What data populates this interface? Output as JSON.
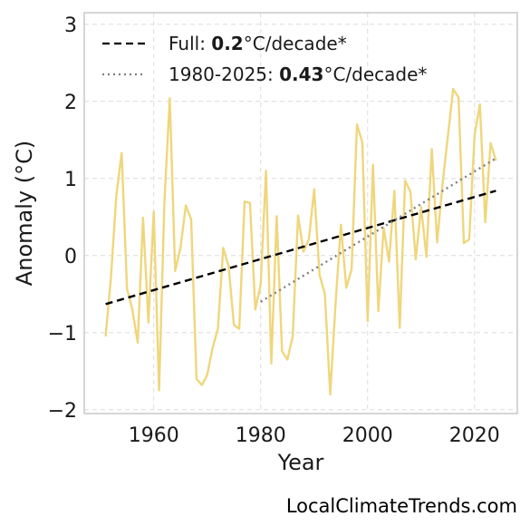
{
  "chart_data": {
    "type": "line",
    "xlabel": "Year",
    "ylabel": "Anomaly (°C)",
    "xlim": [
      1947,
      2028
    ],
    "ylim": [
      -2.05,
      3.15
    ],
    "xticks": [
      1960,
      1980,
      2000,
      2020
    ],
    "yticks": [
      -2,
      -1,
      0,
      1,
      2,
      3
    ],
    "ytick_labels": [
      "−2",
      "−1",
      "0",
      "1",
      "2",
      "3"
    ],
    "grid": true,
    "legend_position": "top-left",
    "series": [
      {
        "x": [
          1951,
          1952,
          1953,
          1954,
          1955,
          1956,
          1957,
          1958,
          1959,
          1960,
          1961,
          1962,
          1963,
          1964,
          1965,
          1966,
          1967,
          1968,
          1969,
          1970,
          1971,
          1972,
          1973,
          1974,
          1975,
          1976,
          1977,
          1978,
          1979,
          1980,
          1981,
          1982,
          1983,
          1984,
          1985,
          1986,
          1987,
          1988,
          1989,
          1990,
          1991,
          1992,
          1993,
          1994,
          1995,
          1996,
          1997,
          1998,
          1999,
          2000,
          2001,
          2002,
          2003,
          2004,
          2005,
          2006,
          2007,
          2008,
          2009,
          2010,
          2011,
          2012,
          2013,
          2014,
          2015,
          2016,
          2017,
          2018,
          2019,
          2020,
          2021,
          2022,
          2023,
          2024
        ],
        "values": [
          -1.05,
          -0.28,
          0.78,
          1.33,
          -0.43,
          -0.7,
          -1.13,
          0.49,
          -0.87,
          0.57,
          -1.75,
          0.7,
          2.04,
          -0.2,
          0.1,
          0.65,
          0.47,
          -1.6,
          -1.68,
          -1.55,
          -1.2,
          -0.95,
          0.1,
          -0.14,
          -0.9,
          -0.95,
          0.7,
          0.68,
          -0.7,
          -0.38,
          1.1,
          -1.4,
          0.51,
          -1.24,
          -1.35,
          -1.05,
          0.52,
          0.05,
          0.21,
          0.86,
          -0.25,
          -0.5,
          -1.8,
          -0.62,
          0.4,
          -0.42,
          -0.18,
          1.7,
          1.47,
          -0.85,
          1.18,
          -0.72,
          0.36,
          -0.08,
          0.84,
          -0.94,
          0.97,
          0.83,
          -0.05,
          0.63,
          -0.02,
          1.38,
          0.17,
          0.92,
          1.54,
          2.16,
          2.05,
          0.16,
          0.21,
          1.56,
          1.96,
          0.43,
          1.46,
          1.23
        ],
        "color": "#f0d67c"
      }
    ],
    "trends": [
      {
        "label_prefix": "Full: ",
        "rate": "0.2",
        "label_suffix": "°C/decade*",
        "x": [
          1951,
          2024
        ],
        "y": [
          -0.63,
          0.84
        ],
        "color": "#000000",
        "dash": "8,5"
      },
      {
        "label_prefix": "1980-2025: ",
        "rate": "0.43",
        "label_suffix": "°C/decade*",
        "x": [
          1980,
          2024
        ],
        "y": [
          -0.6,
          1.26
        ],
        "color": "#7f7f7f",
        "dash": "2,4"
      }
    ]
  },
  "watermark": "LocalClimateTrends.com"
}
